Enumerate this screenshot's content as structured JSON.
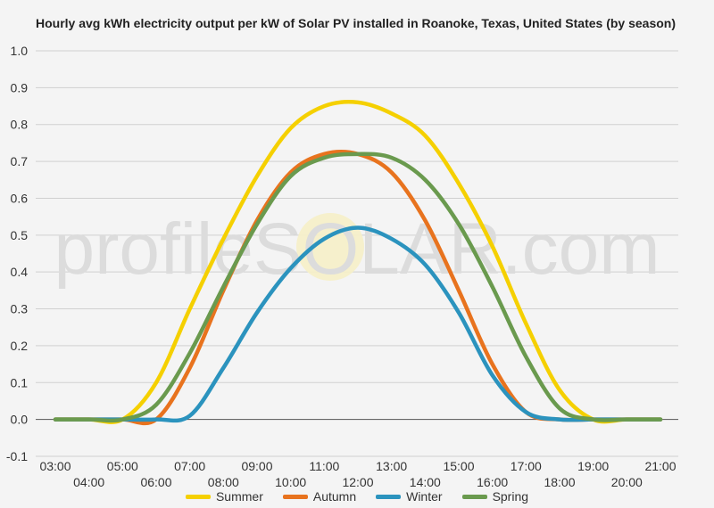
{
  "chart_data": {
    "type": "line",
    "title": "Hourly avg kWh electricity output per kW of Solar PV installed in Roanoke, Texas, United States (by season)",
    "xlabel": "",
    "ylabel": "",
    "ylim": [
      -0.1,
      1.0
    ],
    "yticks": [
      "1.0",
      "0.9",
      "0.8",
      "0.7",
      "0.6",
      "0.5",
      "0.4",
      "0.3",
      "0.2",
      "0.1",
      "0.0",
      "-0.1"
    ],
    "ytick_values": [
      1.0,
      0.9,
      0.8,
      0.7,
      0.6,
      0.5,
      0.4,
      0.3,
      0.2,
      0.1,
      0.0,
      -0.1
    ],
    "categories": [
      "03:00",
      "04:00",
      "05:00",
      "06:00",
      "07:00",
      "08:00",
      "09:00",
      "10:00",
      "11:00",
      "12:00",
      "13:00",
      "14:00",
      "15:00",
      "16:00",
      "17:00",
      "18:00",
      "19:00",
      "20:00",
      "21:00"
    ],
    "grid": true,
    "legend_position": "bottom",
    "watermark": "profileSOLAR.com",
    "series": [
      {
        "name": "Summer",
        "color": "#f5d000",
        "values": [
          0.0,
          0.0,
          0.0,
          0.1,
          0.3,
          0.49,
          0.66,
          0.79,
          0.85,
          0.86,
          0.83,
          0.77,
          0.64,
          0.47,
          0.26,
          0.08,
          0.0,
          0.0,
          0.0
        ]
      },
      {
        "name": "Autumn",
        "color": "#e8731e",
        "values": [
          0.0,
          0.0,
          0.0,
          0.0,
          0.14,
          0.35,
          0.54,
          0.67,
          0.72,
          0.72,
          0.67,
          0.54,
          0.35,
          0.15,
          0.02,
          0.0,
          0.0,
          0.0,
          0.0
        ]
      },
      {
        "name": "Winter",
        "color": "#2b93be",
        "values": [
          0.0,
          0.0,
          0.0,
          0.0,
          0.01,
          0.14,
          0.29,
          0.41,
          0.49,
          0.52,
          0.49,
          0.42,
          0.29,
          0.12,
          0.02,
          0.0,
          0.0,
          0.0,
          0.0
        ]
      },
      {
        "name": "Spring",
        "color": "#6a9a4e",
        "values": [
          0.0,
          0.0,
          0.0,
          0.04,
          0.18,
          0.36,
          0.53,
          0.66,
          0.71,
          0.72,
          0.71,
          0.65,
          0.53,
          0.36,
          0.17,
          0.03,
          0.0,
          0.0,
          0.0
        ]
      }
    ]
  }
}
